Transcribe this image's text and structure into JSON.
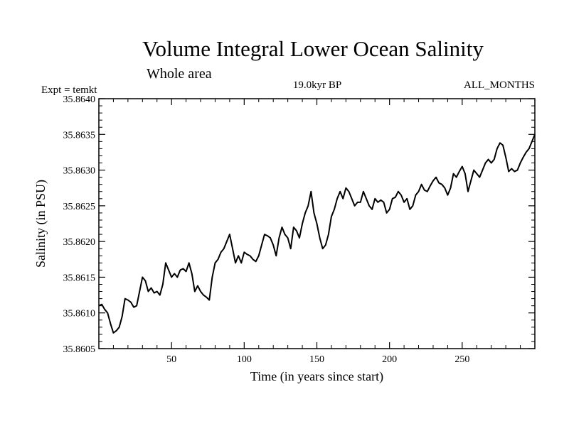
{
  "chart_data": {
    "type": "line",
    "title": "Volume Integral Lower Ocean Salinity",
    "subtitle": "Whole area",
    "left_note": "Expt = temkt",
    "center_note": "19.0kyr BP",
    "right_note": "ALL_MONTHS",
    "xlabel": "Time (in years since start)",
    "ylabel": "Salinity (in PSU)",
    "xlim": [
      0,
      300
    ],
    "ylim": [
      35.8605,
      35.864
    ],
    "xticks": [
      50,
      100,
      150,
      200,
      250
    ],
    "yticks": [
      "35.8605",
      "35.8610",
      "35.8615",
      "35.8620",
      "35.8625",
      "35.8630",
      "35.8635",
      "35.8640"
    ],
    "series": [
      {
        "name": "Salinity",
        "color": "#000000",
        "x": [
          0,
          2,
          4,
          6,
          8,
          10,
          12,
          14,
          16,
          18,
          20,
          22,
          24,
          26,
          28,
          30,
          32,
          34,
          36,
          38,
          40,
          42,
          44,
          46,
          48,
          50,
          52,
          54,
          56,
          58,
          60,
          62,
          64,
          66,
          68,
          70,
          72,
          74,
          76,
          78,
          80,
          82,
          84,
          86,
          88,
          90,
          92,
          94,
          96,
          98,
          100,
          102,
          104,
          106,
          108,
          110,
          112,
          114,
          116,
          118,
          120,
          122,
          124,
          126,
          128,
          130,
          132,
          134,
          136,
          138,
          140,
          142,
          144,
          146,
          148,
          150,
          152,
          154,
          156,
          158,
          160,
          162,
          164,
          166,
          168,
          170,
          172,
          174,
          176,
          178,
          180,
          182,
          184,
          186,
          188,
          190,
          192,
          194,
          196,
          198,
          200,
          202,
          204,
          206,
          208,
          210,
          212,
          214,
          216,
          218,
          220,
          222,
          224,
          226,
          228,
          230,
          232,
          234,
          236,
          238,
          240,
          242,
          244,
          246,
          248,
          250,
          252,
          254,
          256,
          258,
          260,
          262,
          264,
          266,
          268,
          270,
          272,
          274,
          276,
          278,
          280,
          282,
          284,
          286,
          288,
          290,
          292,
          294,
          296,
          298,
          300
        ],
        "values": [
          35.8611,
          35.86112,
          35.86105,
          35.861,
          35.86085,
          35.86072,
          35.86075,
          35.8608,
          35.86095,
          35.8612,
          35.86118,
          35.86115,
          35.86108,
          35.8611,
          35.8613,
          35.8615,
          35.86145,
          35.8613,
          35.86135,
          35.86128,
          35.8613,
          35.86125,
          35.8614,
          35.8617,
          35.8616,
          35.8615,
          35.86155,
          35.8615,
          35.8616,
          35.86162,
          35.86158,
          35.8617,
          35.86155,
          35.8613,
          35.86138,
          35.8613,
          35.86125,
          35.86122,
          35.86118,
          35.8615,
          35.8617,
          35.86175,
          35.86185,
          35.8619,
          35.862,
          35.8621,
          35.8619,
          35.8617,
          35.8618,
          35.8617,
          35.86185,
          35.86182,
          35.8618,
          35.86175,
          35.86172,
          35.8618,
          35.86195,
          35.8621,
          35.86208,
          35.86205,
          35.86195,
          35.8618,
          35.86205,
          35.8622,
          35.8621,
          35.86205,
          35.8619,
          35.8622,
          35.86215,
          35.86205,
          35.86225,
          35.8624,
          35.8625,
          35.8627,
          35.8624,
          35.86225,
          35.86205,
          35.8619,
          35.86195,
          35.8621,
          35.86235,
          35.86245,
          35.8626,
          35.8627,
          35.8626,
          35.86275,
          35.8627,
          35.8626,
          35.8625,
          35.86255,
          35.86255,
          35.8627,
          35.8626,
          35.8625,
          35.86245,
          35.8626,
          35.86255,
          35.86258,
          35.86255,
          35.8624,
          35.86245,
          35.8626,
          35.86262,
          35.8627,
          35.86265,
          35.86255,
          35.8626,
          35.86245,
          35.8625,
          35.86265,
          35.8627,
          35.8628,
          35.86272,
          35.8627,
          35.86278,
          35.86285,
          35.8629,
          35.86282,
          35.8628,
          35.86275,
          35.86265,
          35.86275,
          35.86295,
          35.8629,
          35.86298,
          35.86305,
          35.86295,
          35.8627,
          35.86285,
          35.863,
          35.86295,
          35.8629,
          35.863,
          35.8631,
          35.86315,
          35.8631,
          35.86315,
          35.8633,
          35.86338,
          35.86335,
          35.86318,
          35.86298,
          35.86302,
          35.86298,
          35.863,
          35.8631,
          35.86318,
          35.86325,
          35.8633,
          35.8634,
          35.8635
        ]
      }
    ]
  }
}
